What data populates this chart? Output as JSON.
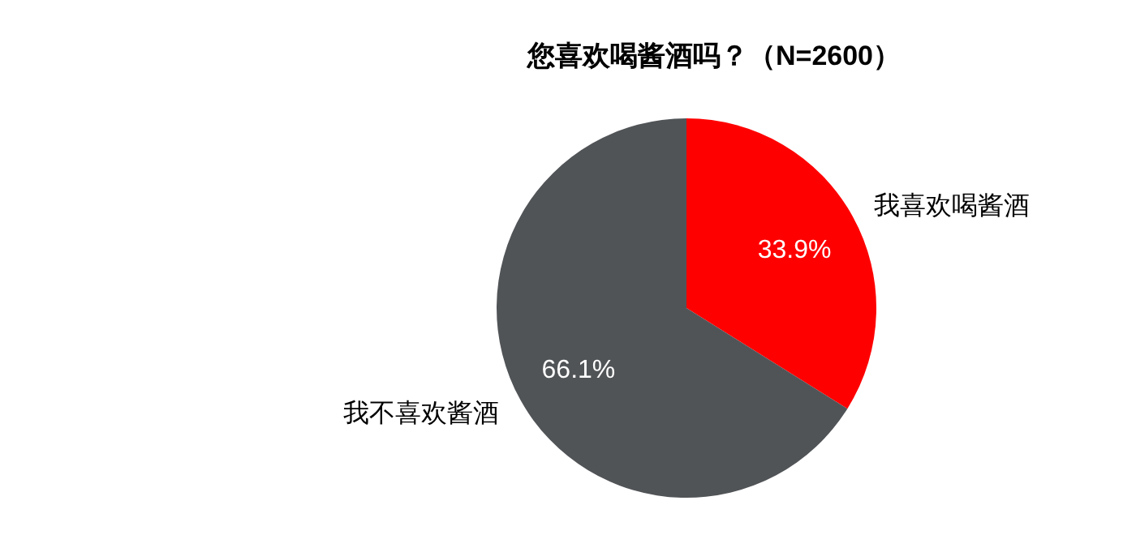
{
  "chart_data": {
    "type": "pie",
    "title": "您喜欢喝酱酒吗？（N=2600）",
    "categories": [
      "我喜欢喝酱酒",
      "我不喜欢酱酒"
    ],
    "values": [
      33.9,
      66.1
    ],
    "colors": [
      "#ff0000",
      "#515457"
    ],
    "value_labels": [
      "33.9%",
      "66.1%"
    ]
  }
}
